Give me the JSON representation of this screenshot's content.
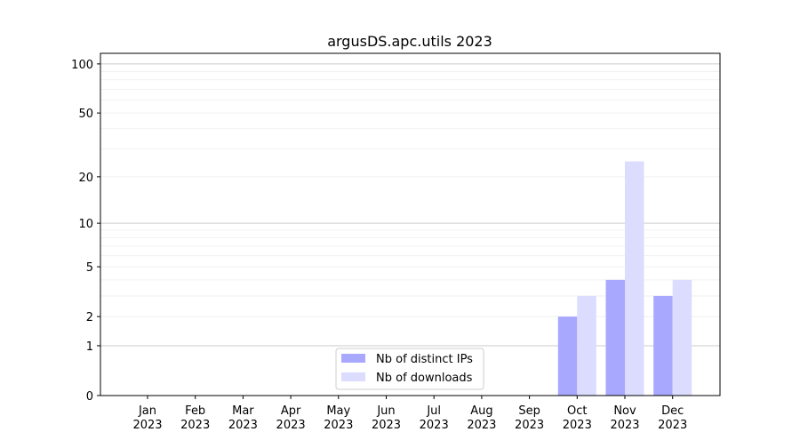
{
  "chart_data": {
    "type": "bar",
    "title": "argusDS.apc.utils 2023",
    "xlabel": "",
    "ylabel": "",
    "yscale": "log(1+y)",
    "ylim": [
      0,
      116
    ],
    "yticks": [
      0,
      1,
      2,
      5,
      10,
      20,
      50,
      100
    ],
    "grid": true,
    "legend_position": "bottom-center",
    "categories": [
      "Jan\n2023",
      "Feb\n2023",
      "Mar\n2023",
      "Apr\n2023",
      "May\n2023",
      "Jun\n2023",
      "Jul\n2023",
      "Aug\n2023",
      "Sep\n2023",
      "Oct\n2023",
      "Nov\n2023",
      "Dec\n2023"
    ],
    "series": [
      {
        "name": "Nb of distinct IPs",
        "color": "#a8a8ff",
        "values": [
          0,
          0,
          0,
          0,
          0,
          0,
          0,
          0,
          0,
          2,
          4,
          3
        ]
      },
      {
        "name": "Nb of downloads",
        "color": "#dcdcff",
        "values": [
          0,
          0,
          0,
          0,
          0,
          0,
          0,
          0,
          0,
          3,
          25,
          4
        ]
      }
    ]
  }
}
